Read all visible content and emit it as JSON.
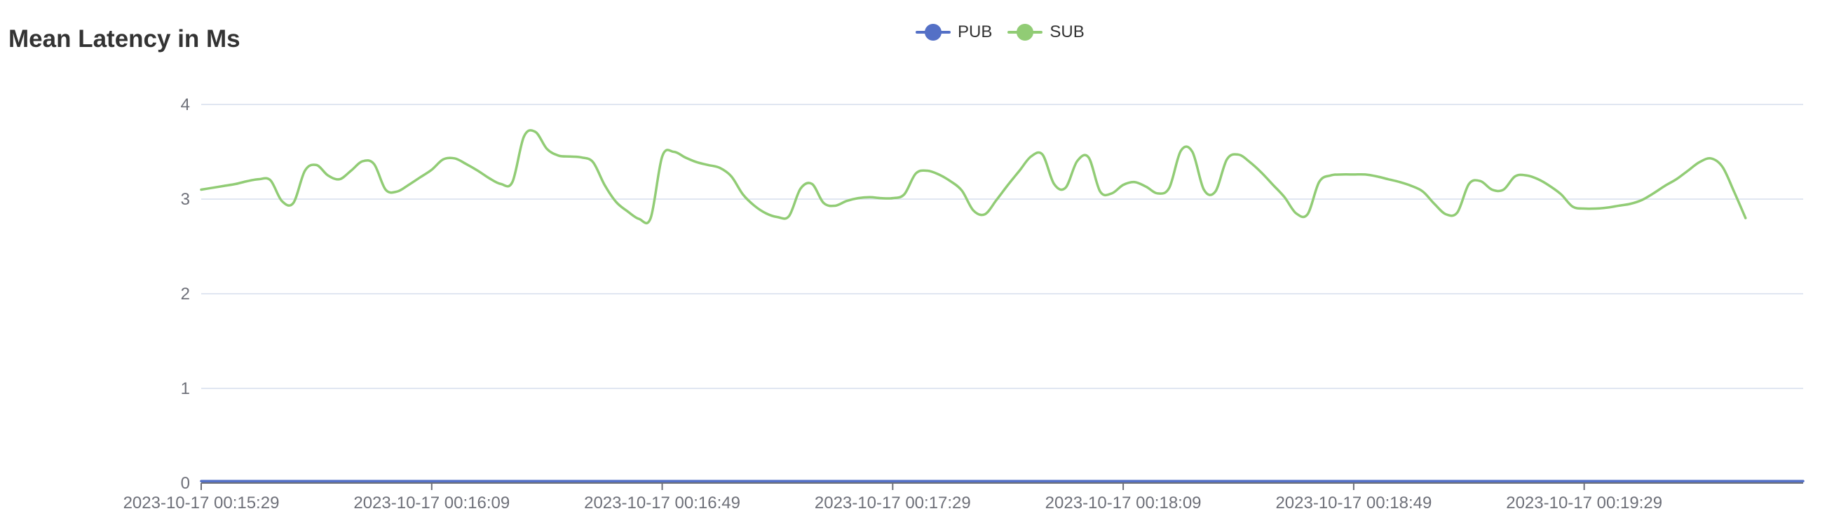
{
  "chart_data": {
    "type": "line",
    "title": "Mean Latency in Ms",
    "xlabel": "",
    "ylabel": "",
    "ylim": [
      0,
      4
    ],
    "yticks": [
      "0",
      "1",
      "2",
      "3",
      "4"
    ],
    "xtick_labels": [
      "2023-10-17 00:15:29",
      "2023-10-17 00:16:09",
      "2023-10-17 00:16:49",
      "2023-10-17 00:17:29",
      "2023-10-17 00:18:09",
      "2023-10-17 00:18:49",
      "2023-10-17 00:19:29"
    ],
    "x_start": "2023-10-17 00:15:29",
    "x_step_seconds": 2,
    "grid": true,
    "legend_position": "top-center",
    "series": [
      {
        "name": "PUB",
        "color": "#5470c6",
        "values": [
          0.02,
          0.02,
          0.02,
          0.02,
          0.02,
          0.02,
          0.02,
          0.02,
          0.02,
          0.02,
          0.02,
          0.02,
          0.02,
          0.02,
          0.02,
          0.02,
          0.02,
          0.02,
          0.02,
          0.02,
          0.02,
          0.02,
          0.02,
          0.02,
          0.02,
          0.02,
          0.02,
          0.02,
          0.02,
          0.02,
          0.02,
          0.02,
          0.02,
          0.02,
          0.02,
          0.02,
          0.02,
          0.02,
          0.02,
          0.02,
          0.02,
          0.02,
          0.02,
          0.02,
          0.02,
          0.02,
          0.02,
          0.02,
          0.02,
          0.02,
          0.02,
          0.02,
          0.02,
          0.02,
          0.02,
          0.02,
          0.02,
          0.02,
          0.02,
          0.02,
          0.02,
          0.02,
          0.02,
          0.02,
          0.02,
          0.02,
          0.02,
          0.02,
          0.02,
          0.02,
          0.02,
          0.02,
          0.02,
          0.02,
          0.02,
          0.02,
          0.02,
          0.02,
          0.02,
          0.02,
          0.02,
          0.02,
          0.02,
          0.02,
          0.02,
          0.02,
          0.02,
          0.02,
          0.02,
          0.02,
          0.02,
          0.02,
          0.02,
          0.02,
          0.02,
          0.02,
          0.02,
          0.02,
          0.02,
          0.02,
          0.02,
          0.02,
          0.02,
          0.02,
          0.02,
          0.02,
          0.02,
          0.02,
          0.02,
          0.02,
          0.02,
          0.02,
          0.02,
          0.02,
          0.02,
          0.02,
          0.02,
          0.02,
          0.02,
          0.02,
          0.02,
          0.02,
          0.02,
          0.02,
          0.02,
          0.02,
          0.02,
          0.02,
          0.02,
          0.02,
          0.02,
          0.02,
          0.02,
          0.02,
          0.02,
          0.02,
          0.02,
          0.02,
          0.02,
          0.02
        ]
      },
      {
        "name": "SUB",
        "color": "#91cc75",
        "values": [
          3.1,
          3.12,
          3.14,
          3.16,
          3.19,
          3.21,
          3.2,
          2.98,
          2.96,
          3.3,
          3.36,
          3.25,
          3.21,
          3.3,
          3.4,
          3.37,
          3.1,
          3.08,
          3.15,
          3.23,
          3.31,
          3.42,
          3.43,
          3.37,
          3.3,
          3.22,
          3.16,
          3.18,
          3.66,
          3.71,
          3.53,
          3.46,
          3.45,
          3.44,
          3.39,
          3.15,
          2.97,
          2.87,
          2.79,
          2.8,
          3.45,
          3.5,
          3.44,
          3.39,
          3.36,
          3.33,
          3.24,
          3.05,
          2.93,
          2.85,
          2.81,
          2.82,
          3.11,
          3.16,
          2.96,
          2.93,
          2.98,
          3.01,
          3.02,
          3.01,
          3.01,
          3.05,
          3.27,
          3.3,
          3.26,
          3.19,
          3.09,
          2.88,
          2.84,
          2.99,
          3.15,
          3.3,
          3.45,
          3.47,
          3.16,
          3.12,
          3.4,
          3.44,
          3.08,
          3.06,
          3.15,
          3.18,
          3.13,
          3.06,
          3.12,
          3.51,
          3.5,
          3.1,
          3.08,
          3.42,
          3.47,
          3.39,
          3.28,
          3.15,
          3.02,
          2.85,
          2.84,
          3.18,
          3.25,
          3.26,
          3.26,
          3.26,
          3.24,
          3.21,
          3.18,
          3.14,
          3.08,
          2.95,
          2.84,
          2.86,
          3.16,
          3.19,
          3.1,
          3.1,
          3.24,
          3.25,
          3.21,
          3.14,
          3.05,
          2.92,
          2.9,
          2.9,
          2.91,
          2.93,
          2.95,
          2.99,
          3.06,
          3.14,
          3.21,
          3.3,
          3.39,
          3.43,
          3.34,
          3.08,
          2.8
        ]
      }
    ]
  }
}
